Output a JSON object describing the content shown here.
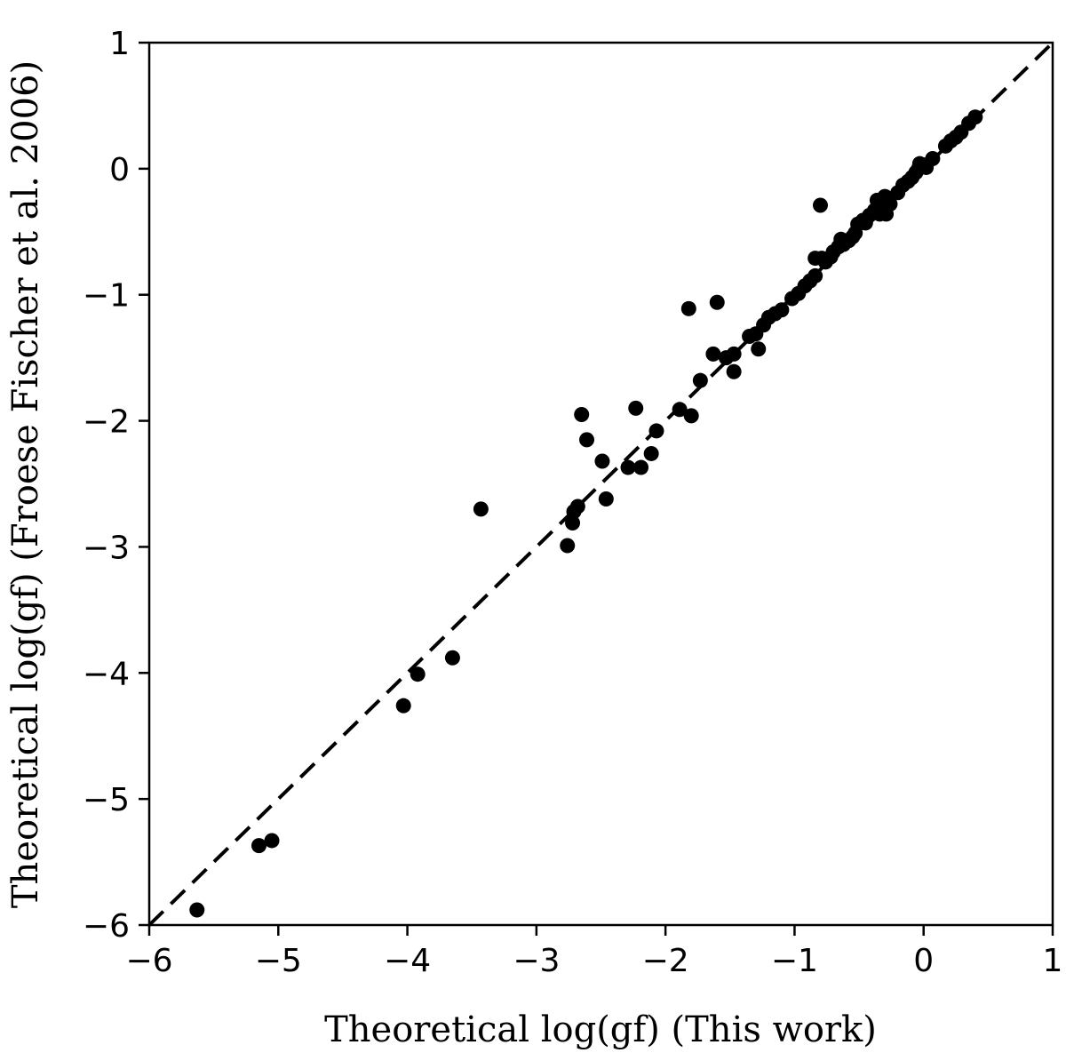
{
  "chart_data": {
    "type": "scatter",
    "xlabel": "Theoretical log(gf) (This work)",
    "ylabel": "Theoretical log(gf) (Froese Fischer et al. 2006)",
    "xlim": [
      -6,
      1
    ],
    "ylim": [
      -6,
      1
    ],
    "xticks": [
      -6,
      -5,
      -4,
      -3,
      -2,
      -1,
      0,
      1
    ],
    "yticks": [
      -6,
      -5,
      -4,
      -3,
      -2,
      -1,
      0,
      1
    ],
    "xtick_labels": [
      "−6",
      "−5",
      "−4",
      "−3",
      "−2",
      "−1",
      "0",
      "1"
    ],
    "ytick_labels": [
      "−6",
      "−5",
      "−4",
      "−3",
      "−2",
      "−1",
      "0",
      "1"
    ],
    "grid": false,
    "marker_color": "#000000",
    "reference_line": {
      "style": "dashed",
      "from": [
        -6,
        -6
      ],
      "to": [
        1,
        1
      ],
      "color": "#000000"
    },
    "points": [
      [
        -5.63,
        -5.88
      ],
      [
        -5.15,
        -5.37
      ],
      [
        -5.05,
        -5.33
      ],
      [
        -4.03,
        -4.26
      ],
      [
        -3.92,
        -4.01
      ],
      [
        -3.65,
        -3.88
      ],
      [
        -3.43,
        -2.7
      ],
      [
        -2.76,
        -2.99
      ],
      [
        -2.72,
        -2.81
      ],
      [
        -2.71,
        -2.72
      ],
      [
        -2.68,
        -2.68
      ],
      [
        -2.65,
        -1.95
      ],
      [
        -2.61,
        -2.15
      ],
      [
        -2.49,
        -2.32
      ],
      [
        -2.46,
        -2.62
      ],
      [
        -2.29,
        -2.37
      ],
      [
        -2.23,
        -1.9
      ],
      [
        -2.19,
        -2.37
      ],
      [
        -2.11,
        -2.26
      ],
      [
        -2.07,
        -2.08
      ],
      [
        -1.89,
        -1.91
      ],
      [
        -1.82,
        -1.11
      ],
      [
        -1.8,
        -1.96
      ],
      [
        -1.73,
        -1.68
      ],
      [
        -1.63,
        -1.47
      ],
      [
        -1.6,
        -1.06
      ],
      [
        -1.53,
        -1.5
      ],
      [
        -1.47,
        -1.47
      ],
      [
        -1.47,
        -1.61
      ],
      [
        -1.35,
        -1.33
      ],
      [
        -1.3,
        -1.31
      ],
      [
        -1.28,
        -1.43
      ],
      [
        -1.24,
        -1.24
      ],
      [
        -1.2,
        -1.18
      ],
      [
        -1.15,
        -1.15
      ],
      [
        -1.1,
        -1.12
      ],
      [
        -1.02,
        -1.03
      ],
      [
        -0.97,
        -0.99
      ],
      [
        -0.92,
        -0.93
      ],
      [
        -0.88,
        -0.89
      ],
      [
        -0.84,
        -0.85
      ],
      [
        -0.84,
        -0.71
      ],
      [
        -0.8,
        -0.29
      ],
      [
        -0.79,
        -0.71
      ],
      [
        -0.76,
        -0.74
      ],
      [
        -0.72,
        -0.7
      ],
      [
        -0.7,
        -0.66
      ],
      [
        -0.66,
        -0.62
      ],
      [
        -0.64,
        -0.56
      ],
      [
        -0.62,
        -0.6
      ],
      [
        -0.58,
        -0.57
      ],
      [
        -0.55,
        -0.54
      ],
      [
        -0.53,
        -0.51
      ],
      [
        -0.51,
        -0.44
      ],
      [
        -0.47,
        -0.41
      ],
      [
        -0.45,
        -0.43
      ],
      [
        -0.42,
        -0.37
      ],
      [
        -0.38,
        -0.33
      ],
      [
        -0.36,
        -0.25
      ],
      [
        -0.34,
        -0.36
      ],
      [
        -0.31,
        -0.27
      ],
      [
        -0.3,
        -0.22
      ],
      [
        -0.29,
        -0.36
      ],
      [
        -0.26,
        -0.28
      ],
      [
        -0.2,
        -0.19
      ],
      [
        -0.16,
        -0.13
      ],
      [
        -0.12,
        -0.1
      ],
      [
        -0.09,
        -0.07
      ],
      [
        -0.06,
        -0.03
      ],
      [
        -0.04,
        0.0
      ],
      [
        -0.03,
        0.04
      ],
      [
        0.0,
        0.03
      ],
      [
        0.02,
        0.01
      ],
      [
        0.07,
        0.08
      ],
      [
        0.17,
        0.18
      ],
      [
        0.21,
        0.22
      ],
      [
        0.25,
        0.25
      ],
      [
        0.29,
        0.29
      ],
      [
        0.35,
        0.36
      ],
      [
        0.4,
        0.41
      ]
    ]
  }
}
